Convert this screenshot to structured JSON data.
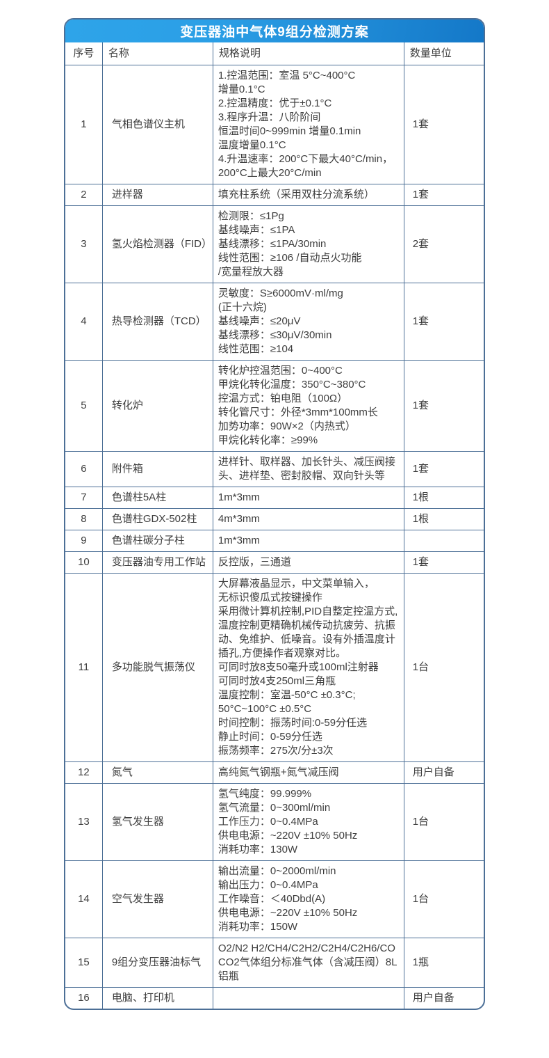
{
  "header": {
    "title": "变压器油中气体9组分检测方案"
  },
  "colors": {
    "header_gradient_start": "#2ea4e9",
    "header_gradient_end": "#1478c8",
    "grid_border": "#4c6f96",
    "title_text": "#ffffff",
    "body_text": "#3d3d3d",
    "background": "#ffffff"
  },
  "table": {
    "columns": [
      "序号",
      "名称",
      "规格说明",
      "数量单位"
    ],
    "rows": [
      {
        "no": "1",
        "name": "气相色谱仪主机",
        "spec": [
          "1.控温范围：室温 5°C~400°C",
          "增量0.1°C",
          "2.控温精度：优于±0.1°C",
          "3.程序升温：八阶阶间",
          "恒温时间0~999min 增量0.1min",
          "温度增量0.1°C",
          "4.升温速率：200°C下最大40°C/min，",
          "200°C上最大20°C/min"
        ],
        "qty": "1套"
      },
      {
        "no": "2",
        "name": "进样器",
        "spec": [
          "填充柱系统（采用双柱分流系统）"
        ],
        "qty": "1套"
      },
      {
        "no": "3",
        "name": "氢火焰检测器（FID）",
        "spec": [
          "检测限：≤1Pg",
          "基线噪声：≤1PA",
          "基线漂移：≤1PA/30min",
          "线性范围：≥106 /自动点火功能",
          "/宽量程放大器"
        ],
        "qty": "2套"
      },
      {
        "no": "4",
        "name": "热导检测器（TCD）",
        "spec": [
          "灵敏度：S≥6000mV·ml/mg",
          "(正十六烷)",
          "基线噪声：≤20μV",
          "基线漂移：≤30μV/30min",
          "线性范围：≥104"
        ],
        "qty": "1套"
      },
      {
        "no": "5",
        "name": "转化炉",
        "spec": [
          "转化炉控温范围：0~400°C",
          "甲烷化转化温度：350°C~380°C",
          "控温方式：铂电阻（100Ω）",
          "转化管尺寸：外径*3mm*100mm长",
          "加势功率：90W×2（内热式）",
          "甲烷化转化率：≥99%"
        ],
        "qty": "1套"
      },
      {
        "no": "6",
        "name": "附件箱",
        "spec": [
          "进样针、取样器、加长针头、减压阀接头、进样垫、密封胶帽、双向针头等"
        ],
        "qty": "1套"
      },
      {
        "no": "7",
        "name": "色谱柱5A柱",
        "spec": [
          "1m*3mm"
        ],
        "qty": "1根"
      },
      {
        "no": "8",
        "name": "色谱柱GDX-502柱",
        "spec": [
          "4m*3mm"
        ],
        "qty": "1根"
      },
      {
        "no": "9",
        "name": "色谱柱碳分子柱",
        "spec": [
          "1m*3mm"
        ],
        "qty": ""
      },
      {
        "no": "10",
        "name": "变压器油专用工作站",
        "spec": [
          "反控版，三通道"
        ],
        "qty": "1套"
      },
      {
        "no": "11",
        "name": "多功能脱气振荡仪",
        "spec": [
          "大屏幕液晶显示，中文菜单输入，",
          "无标识傻瓜式按键操作",
          "采用微计算机控制,PID自整定控温方式,温度控制更精确机械传动抗疲劳、抗振动、免维护、低噪音。设有外插温度计插孔,方便操作者观察对比。",
          "可同时放8支50毫升或100ml注射器",
          "可同时放4支250ml三角瓶",
          "温度控制：室温-50°C ±0.3°C;",
          "50°C~100°C ±0.5°C",
          "时间控制：振荡时间:0-59分任选",
          "静止时间：0-59分任选",
          "振荡频率：275次/分±3次"
        ],
        "qty": "1台"
      },
      {
        "no": "12",
        "name": "氮气",
        "spec": [
          "高纯氮气钢瓶+氮气减压阀"
        ],
        "qty": "用户自备"
      },
      {
        "no": "13",
        "name": "氢气发生器",
        "spec": [
          "氢气纯度：99.999%",
          "氢气流量：0~300ml/min",
          "工作压力：0~0.4MPa",
          "供电电源：~220V ±10% 50Hz",
          "消耗功率：130W"
        ],
        "qty": "1台"
      },
      {
        "no": "14",
        "name": "空气发生器",
        "spec": [
          "输出流量：0~2000ml/min",
          "输出压力：0~0.4MPa",
          "工作噪音：＜40Dbd(A)",
          "供电电源：~220V ±10% 50Hz",
          "消耗功率：150W"
        ],
        "qty": "1台"
      },
      {
        "no": "15",
        "name": "9组分变压器油标气",
        "spec": [
          "O2/N2 H2/CH4/C2H2/C2H4/C2H6/CO CO2气体组分标准气体（含减压阀）8L铝瓶"
        ],
        "qty": "1瓶"
      },
      {
        "no": "16",
        "name": "电脑、打印机",
        "spec": [
          ""
        ],
        "qty": "用户自备"
      }
    ]
  }
}
